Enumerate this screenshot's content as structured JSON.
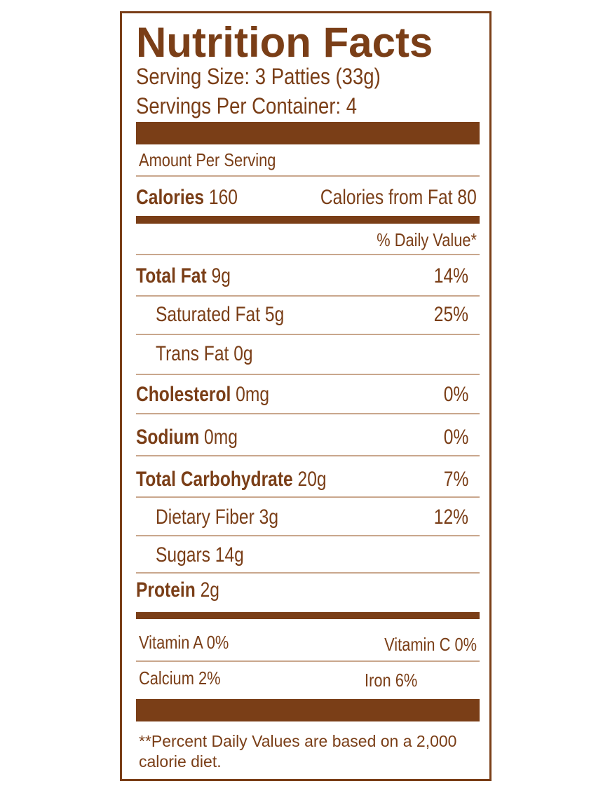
{
  "label": {
    "title": "Nutrition Facts",
    "serving_size": "Serving Size: 3 Patties (33g)",
    "servings_per_container": "Servings Per Container: 4",
    "amount_per_serving": "Amount Per Serving",
    "calories_label": "Calories",
    "calories_value": "160",
    "calories_from_fat": "Calories from Fat 80",
    "daily_value_header": "% Daily Value*",
    "nutrients": [
      {
        "name": "Total Fat",
        "amount": "9g",
        "dv": "14%"
      },
      {
        "name": "Saturated Fat",
        "amount": "5g",
        "dv": "25%"
      },
      {
        "name": "Trans Fat",
        "amount": "0g",
        "dv": ""
      },
      {
        "name": "Cholesterol",
        "amount": "0mg",
        "dv": "0%"
      },
      {
        "name": "Sodium",
        "amount": "0mg",
        "dv": "0%"
      },
      {
        "name": "Total Carbohydrate",
        "amount": "20g",
        "dv": "7%"
      },
      {
        "name": "Dietary Fiber",
        "amount": "3g",
        "dv": "12%"
      },
      {
        "name": "Sugars",
        "amount": "14g",
        "dv": ""
      },
      {
        "name": "Protein",
        "amount": "2g",
        "dv": ""
      }
    ],
    "vitamins": {
      "vitamin_a": "Vitamin A 0%",
      "vitamin_c": "Vitamin C 0%",
      "calcium": "Calcium 2%",
      "iron": "Iron 6%"
    },
    "footnote": "**Percent Daily Values are based on a 2,000 calorie diet."
  },
  "colors": {
    "brand_brown": "#7a3e17",
    "rule": "#c9a78d"
  }
}
